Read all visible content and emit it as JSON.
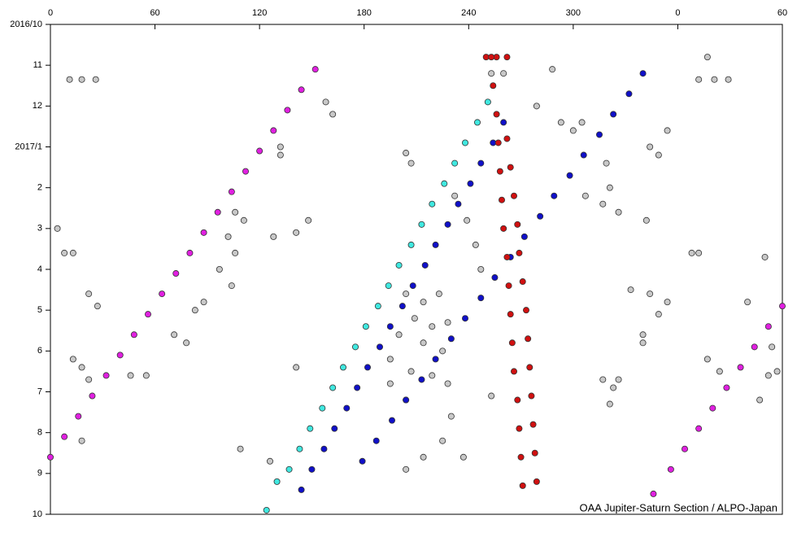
{
  "chart_data": {
    "type": "scatter",
    "annotation": "OAA Jupiter-Saturn Section / ALPO-Japan",
    "xlim": [
      0,
      420
    ],
    "ylim": [
      0,
      12
    ],
    "y_reversed": true,
    "xticks": [
      0,
      60,
      120,
      180,
      240,
      300,
      {
        "value": 360,
        "label": "0"
      },
      {
        "value": 420,
        "label": "60"
      }
    ],
    "yticks": [
      {
        "value": 0,
        "label": "2016/10"
      },
      {
        "value": 1,
        "label": "11"
      },
      {
        "value": 2,
        "label": "12"
      },
      {
        "value": 3,
        "label": "2017/1"
      },
      {
        "value": 4,
        "label": "2"
      },
      {
        "value": 5,
        "label": "3"
      },
      {
        "value": 6,
        "label": "4"
      },
      {
        "value": 7,
        "label": "5"
      },
      {
        "value": 8,
        "label": "6"
      },
      {
        "value": 9,
        "label": "7"
      },
      {
        "value": 10,
        "label": "8"
      },
      {
        "value": 11,
        "label": "9"
      },
      {
        "value": 12,
        "label": "10"
      }
    ],
    "series": [
      {
        "color": "#c8c8c8",
        "x": [
          377,
          11,
          18,
          26,
          372,
          381,
          389,
          158,
          162,
          132,
          132,
          204,
          207,
          106,
          111,
          102,
          106,
          97,
          104,
          88,
          83,
          71,
          78,
          4,
          8,
          13,
          22,
          27,
          13,
          18,
          22,
          46,
          55,
          18,
          109,
          126,
          148,
          141,
          128,
          141,
          204,
          214,
          223,
          209,
          219,
          228,
          200,
          214,
          225,
          195,
          207,
          219,
          195,
          204,
          232,
          239,
          244,
          247,
          228,
          230,
          225,
          214,
          204,
          237,
          253,
          260,
          288,
          279,
          293,
          300,
          305,
          319,
          321,
          326,
          342,
          344,
          349,
          354,
          333,
          344,
          349,
          340,
          354,
          340,
          317,
          323,
          326,
          321,
          368,
          372,
          410,
          377,
          384,
          407,
          412,
          417,
          414,
          400,
          253,
          307,
          317
        ],
        "values": [
          0.8,
          1.35,
          1.35,
          1.35,
          1.35,
          1.35,
          1.35,
          1.9,
          2.2,
          3.0,
          3.2,
          3.15,
          3.4,
          4.6,
          4.8,
          5.2,
          5.6,
          6.0,
          6.4,
          6.8,
          7.0,
          7.6,
          7.8,
          5.0,
          5.6,
          5.6,
          6.6,
          6.9,
          8.2,
          8.4,
          8.7,
          8.6,
          8.6,
          10.2,
          10.4,
          10.7,
          4.8,
          5.1,
          5.2,
          8.4,
          6.6,
          6.8,
          6.6,
          7.2,
          7.4,
          7.3,
          7.6,
          7.8,
          8.0,
          8.2,
          8.5,
          8.6,
          8.8,
          9.2,
          4.2,
          4.8,
          5.4,
          6.0,
          8.8,
          9.6,
          10.2,
          10.6,
          10.9,
          10.6,
          1.2,
          1.2,
          1.1,
          2.0,
          2.4,
          2.6,
          2.4,
          3.4,
          4.0,
          4.6,
          4.8,
          3.0,
          3.2,
          2.6,
          6.5,
          6.6,
          7.1,
          7.6,
          6.8,
          7.8,
          8.7,
          8.9,
          8.7,
          9.3,
          5.6,
          5.6,
          5.7,
          8.2,
          8.5,
          9.2,
          8.6,
          8.5,
          7.9,
          6.8,
          9.1,
          4.2,
          4.4
        ]
      },
      {
        "color": "#e020e0",
        "x": [
          152,
          144,
          136,
          128,
          120,
          112,
          104,
          96,
          88,
          80,
          72,
          64,
          56,
          48,
          40,
          32,
          24,
          16,
          8,
          0,
          420,
          412,
          404,
          396,
          388,
          380,
          372,
          364,
          356,
          346
        ],
        "values": [
          1.1,
          1.6,
          2.1,
          2.6,
          3.1,
          3.6,
          4.1,
          4.6,
          5.1,
          5.6,
          6.1,
          6.6,
          7.1,
          7.6,
          8.1,
          8.6,
          9.1,
          9.6,
          10.1,
          10.6,
          6.9,
          7.4,
          7.9,
          8.4,
          8.9,
          9.4,
          9.9,
          10.4,
          10.9,
          11.5
        ]
      },
      {
        "color": "#40e8e0",
        "x": [
          251,
          245,
          238,
          232,
          226,
          219,
          213,
          207,
          200,
          194,
          188,
          181,
          175,
          168,
          162,
          156,
          149,
          143,
          137,
          130,
          124
        ],
        "values": [
          1.9,
          2.4,
          2.9,
          3.4,
          3.9,
          4.4,
          4.9,
          5.4,
          5.9,
          6.4,
          6.9,
          7.4,
          7.9,
          8.4,
          8.9,
          9.4,
          9.9,
          10.4,
          10.9,
          11.2,
          11.9
        ]
      },
      {
        "color": "#1010c8",
        "x": [
          260,
          254,
          247,
          241,
          234,
          228,
          221,
          215,
          208,
          202,
          195,
          189,
          182,
          176,
          170,
          163,
          157,
          150,
          144,
          340,
          332,
          323,
          315,
          306,
          298,
          289,
          281,
          272,
          264,
          255,
          247,
          238,
          230,
          221,
          213,
          204,
          196,
          187,
          179
        ],
        "values": [
          2.4,
          2.9,
          3.4,
          3.9,
          4.4,
          4.9,
          5.4,
          5.9,
          6.4,
          6.9,
          7.4,
          7.9,
          8.4,
          8.9,
          9.4,
          9.9,
          10.4,
          10.9,
          11.4,
          1.2,
          1.7,
          2.2,
          2.7,
          3.2,
          3.7,
          4.2,
          4.7,
          5.2,
          5.7,
          6.2,
          6.7,
          7.2,
          7.7,
          8.2,
          8.7,
          9.2,
          9.7,
          10.2,
          10.7
        ]
      },
      {
        "color": "#d01010",
        "x": [
          250,
          256,
          262,
          253,
          254,
          256,
          257,
          258,
          259,
          260,
          262,
          263,
          264,
          265,
          266,
          268,
          269,
          270,
          271,
          262,
          264,
          266,
          268,
          269,
          271,
          273,
          274,
          275,
          276,
          277,
          278,
          279
        ],
        "values": [
          0.8,
          0.8,
          0.8,
          0.8,
          1.5,
          2.2,
          2.9,
          3.6,
          4.3,
          5.0,
          5.7,
          6.4,
          7.1,
          7.8,
          8.5,
          9.2,
          9.9,
          10.6,
          11.3,
          2.8,
          3.5,
          4.2,
          4.9,
          5.6,
          6.3,
          7.0,
          7.7,
          8.4,
          9.1,
          9.8,
          10.5,
          11.2
        ]
      }
    ]
  }
}
